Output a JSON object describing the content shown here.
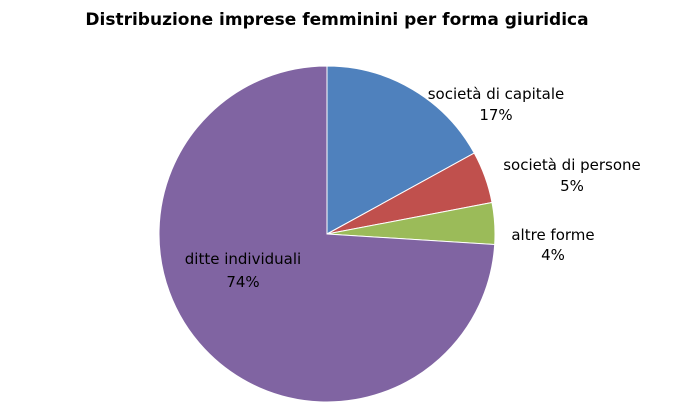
{
  "chart_data": {
    "type": "pie",
    "title": "Distribuzione imprese femminini per forma giuridica",
    "slices": [
      {
        "label": "società di capitale",
        "value": 17,
        "value_label": "17%",
        "color": "#4F81BD"
      },
      {
        "label": "società di persone",
        "value": 5,
        "value_label": "5%",
        "color": "#C0504D"
      },
      {
        "label": "altre forme",
        "value": 4,
        "value_label": "4%",
        "color": "#9BBB59"
      },
      {
        "label": "ditte individuali",
        "value": 74,
        "value_label": "74%",
        "color": "#8064A2"
      }
    ],
    "start_angle_deg": 0,
    "direction": "clockwise",
    "legend": "none",
    "data_labels": "category-and-percent"
  }
}
